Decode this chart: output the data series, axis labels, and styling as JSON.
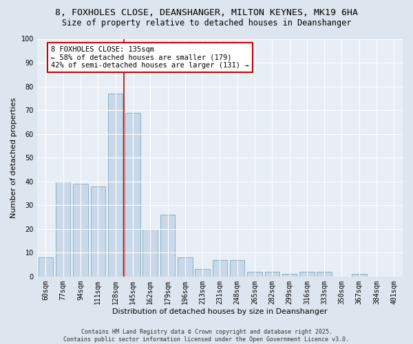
{
  "title1": "8, FOXHOLES CLOSE, DEANSHANGER, MILTON KEYNES, MK19 6HA",
  "title2": "Size of property relative to detached houses in Deanshanger",
  "xlabel": "Distribution of detached houses by size in Deanshanger",
  "ylabel": "Number of detached properties",
  "categories": [
    "60sqm",
    "77sqm",
    "94sqm",
    "111sqm",
    "128sqm",
    "145sqm",
    "162sqm",
    "179sqm",
    "196sqm",
    "213sqm",
    "231sqm",
    "248sqm",
    "265sqm",
    "282sqm",
    "299sqm",
    "316sqm",
    "333sqm",
    "350sqm",
    "367sqm",
    "384sqm",
    "401sqm"
  ],
  "values": [
    8,
    40,
    39,
    38,
    77,
    69,
    20,
    26,
    8,
    3,
    7,
    7,
    2,
    2,
    1,
    2,
    2,
    0,
    1,
    0,
    0
  ],
  "bar_color": "#c8d8e8",
  "bar_edge_color": "#7aaabb",
  "vline_x": 4.5,
  "vline_color": "#cc0000",
  "annotation_text": "8 FOXHOLES CLOSE: 135sqm\n← 58% of detached houses are smaller (179)\n42% of semi-detached houses are larger (131) →",
  "annotation_box_color": "#ffffff",
  "annotation_box_edge": "#cc0000",
  "ylim": [
    0,
    100
  ],
  "yticks": [
    0,
    10,
    20,
    30,
    40,
    50,
    60,
    70,
    80,
    90,
    100
  ],
  "bg_color": "#dde6ee",
  "plot_bg_color": "#e8eef5",
  "grid_color": "#ffffff",
  "footnote": "Contains HM Land Registry data © Crown copyright and database right 2025.\nContains public sector information licensed under the Open Government Licence v3.0.",
  "title_fontsize": 9.5,
  "subtitle_fontsize": 8.5,
  "axis_label_fontsize": 8,
  "tick_fontsize": 7,
  "annotation_fontsize": 7.5,
  "footnote_fontsize": 6
}
